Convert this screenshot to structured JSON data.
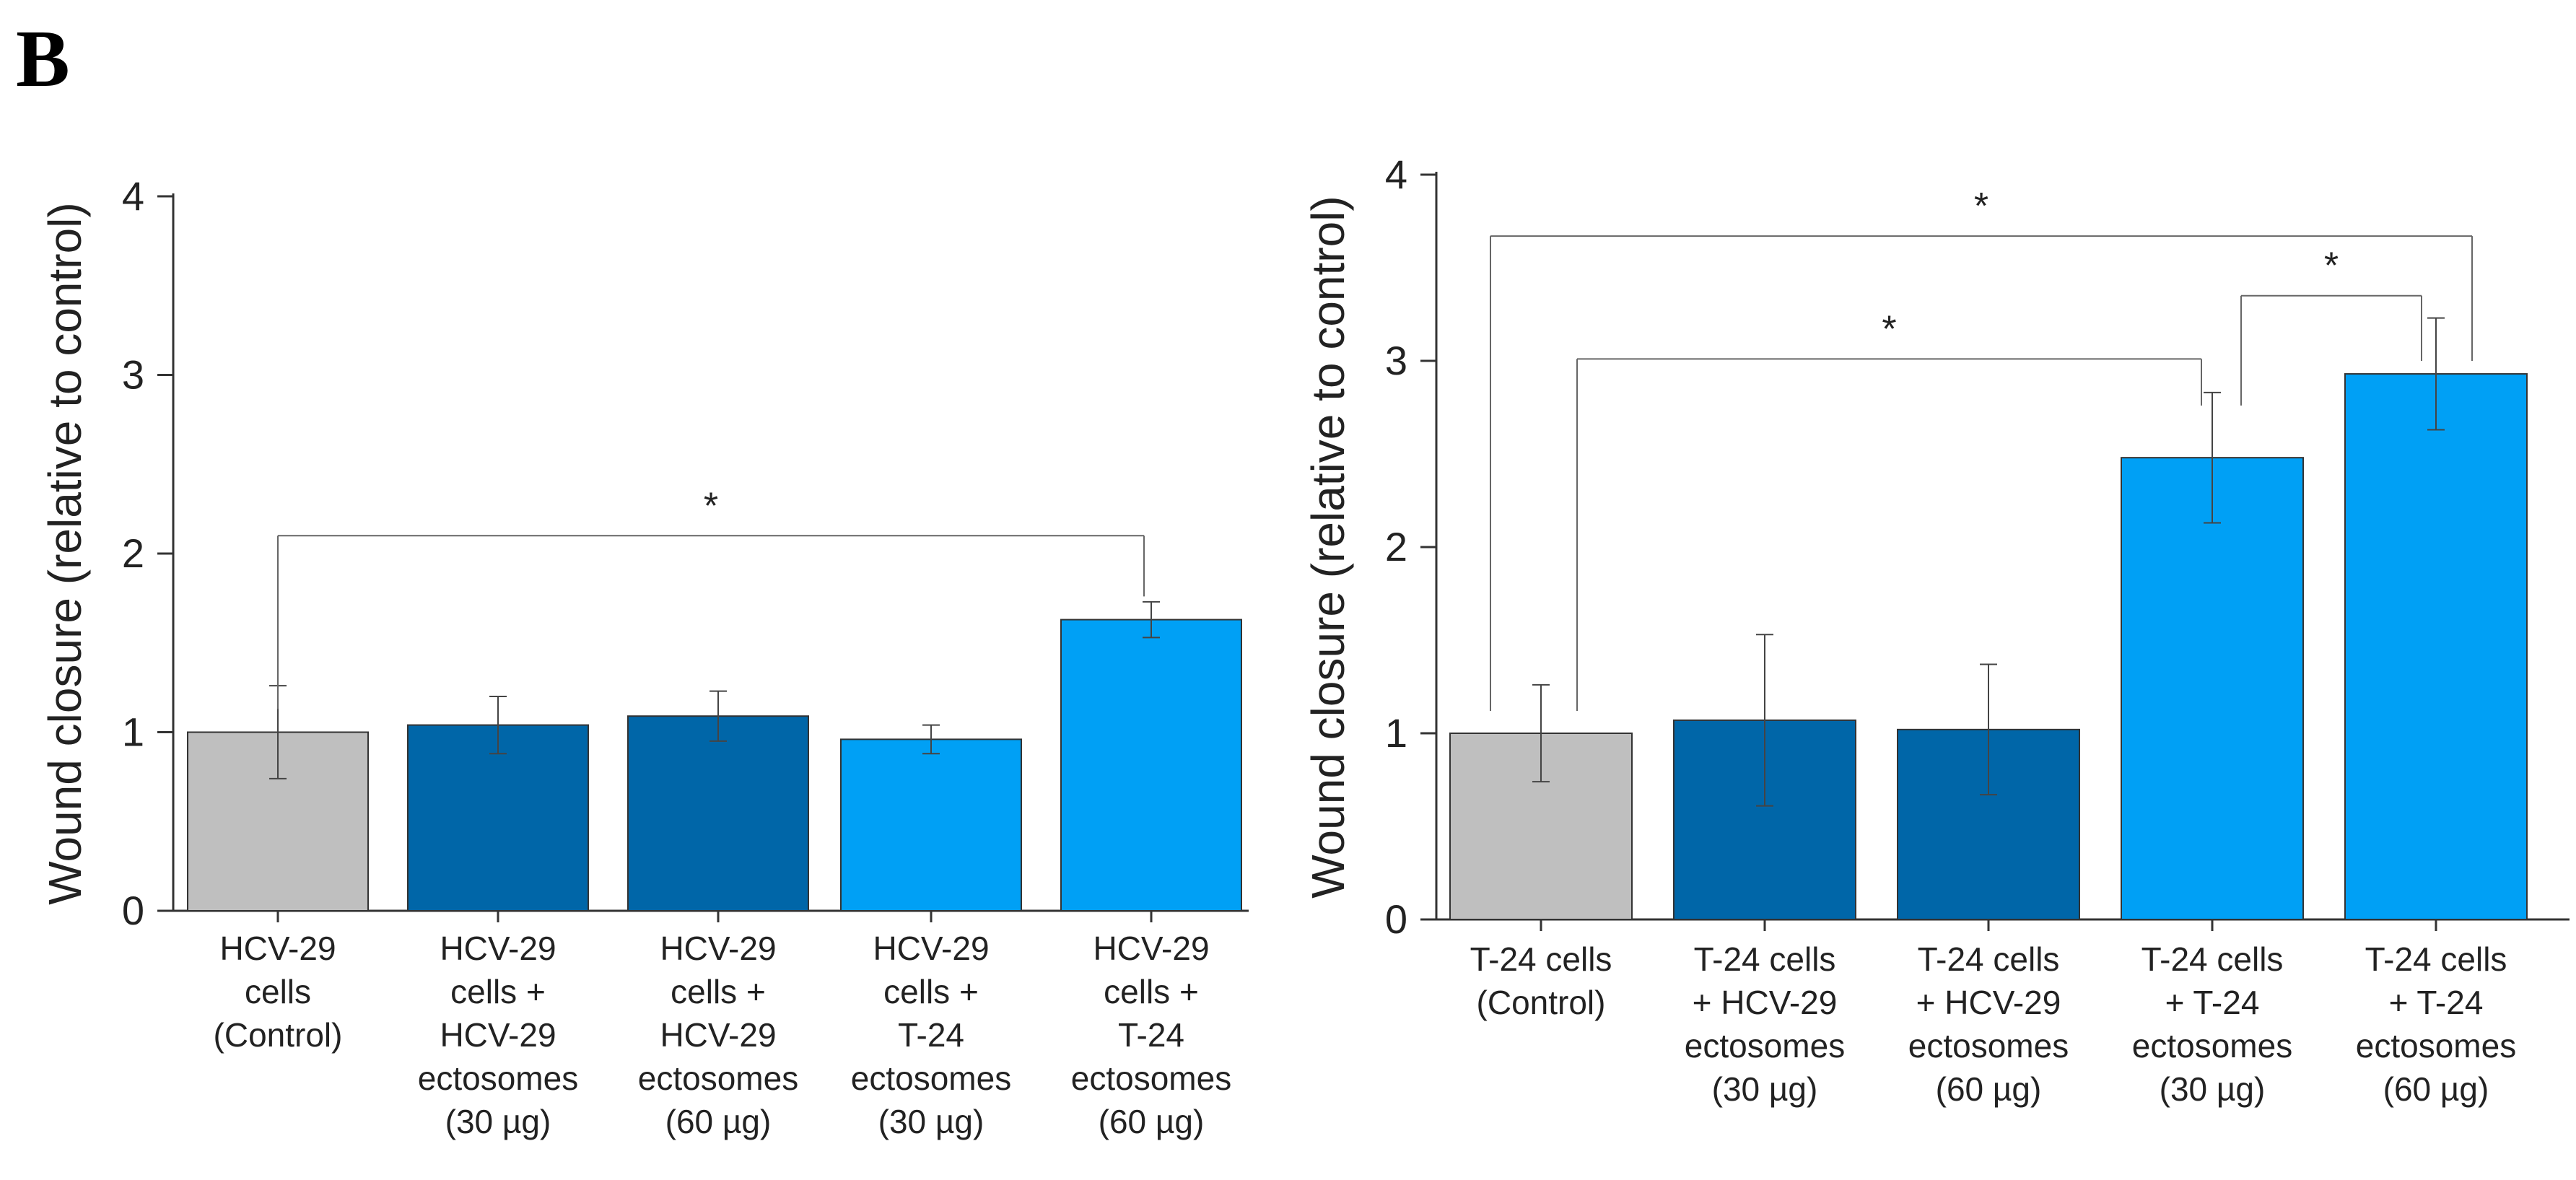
{
  "figure": {
    "panel_label": "B"
  },
  "chart_data": [
    {
      "type": "bar",
      "title": "",
      "xlabel": "",
      "ylabel": "Wound closure (relative to control)",
      "ylim": [
        0,
        4
      ],
      "yticks": [
        "0",
        "1",
        "2",
        "3",
        "4"
      ],
      "categories": [
        [
          "HCV-29",
          "cells",
          "(Control)"
        ],
        [
          "HCV-29",
          "cells +",
          "HCV-29",
          "ectosomes",
          "(30 µg)"
        ],
        [
          "HCV-29",
          "cells +",
          "HCV-29",
          "ectosomes",
          "(60 µg)"
        ],
        [
          "HCV-29",
          "cells +",
          "T-24",
          "ectosomes",
          "(30 µg)"
        ],
        [
          "HCV-29",
          "cells +",
          "T-24",
          "ectosomes",
          "(60 µg)"
        ]
      ],
      "values": [
        1.0,
        1.04,
        1.09,
        0.96,
        1.63
      ],
      "errors": [
        0.26,
        0.16,
        0.14,
        0.08,
        0.1
      ],
      "colors": [
        "#bfbfbf",
        "#0066a8",
        "#0066a8",
        "#00a0f5",
        "#00a0f5"
      ],
      "significance": [
        {
          "from": 0,
          "to": 4,
          "y": 2.1,
          "label": "*"
        }
      ]
    },
    {
      "type": "bar",
      "title": "",
      "xlabel": "",
      "ylabel": "Wound closure (relative to control)",
      "ylim": [
        0,
        4
      ],
      "yticks": [
        "0",
        "1",
        "2",
        "3",
        "4"
      ],
      "categories": [
        [
          "T-24 cells",
          "(Control)"
        ],
        [
          "T-24 cells",
          "+ HCV-29",
          "ectosomes",
          "(30 µg)"
        ],
        [
          "T-24 cells",
          "+ HCV-29",
          "ectosomes",
          "(60 µg)"
        ],
        [
          "T-24 cells",
          "+ T-24",
          "ectosomes",
          "(30 µg)"
        ],
        [
          "T-24 cells",
          "+ T-24",
          "ectosomes",
          "(60 µg)"
        ]
      ],
      "values": [
        1.0,
        1.07,
        1.02,
        2.48,
        2.93
      ],
      "errors": [
        0.26,
        0.46,
        0.35,
        0.35,
        0.3
      ],
      "colors": [
        "#bfbfbf",
        "#0066a8",
        "#0066a8",
        "#00a0f5",
        "#00a0f5"
      ],
      "significance": [
        {
          "from": 0,
          "to": 4,
          "y": 3.67,
          "label": "*"
        },
        {
          "from": 0,
          "to": 3,
          "y": 3.01,
          "label": "*"
        },
        {
          "from": 3,
          "to": 4,
          "y": 3.35,
          "label": "*"
        }
      ]
    }
  ]
}
